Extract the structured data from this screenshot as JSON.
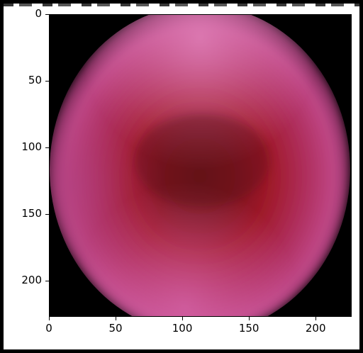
{
  "image": {
    "description_icon": "pink-red-blurred-oval-image",
    "colors": {
      "background": "#000000",
      "outer_pink": "#d05aa0",
      "mid_red": "#a01a2a",
      "center_dark": "#6a1218",
      "highlight": "#e080b8"
    }
  },
  "axes": {
    "xticks": [
      "0",
      "50",
      "100",
      "150",
      "200"
    ],
    "yticks": [
      "0",
      "50",
      "100",
      "150",
      "200"
    ],
    "xlim": [
      0,
      227
    ],
    "ylim": [
      227,
      0
    ]
  }
}
